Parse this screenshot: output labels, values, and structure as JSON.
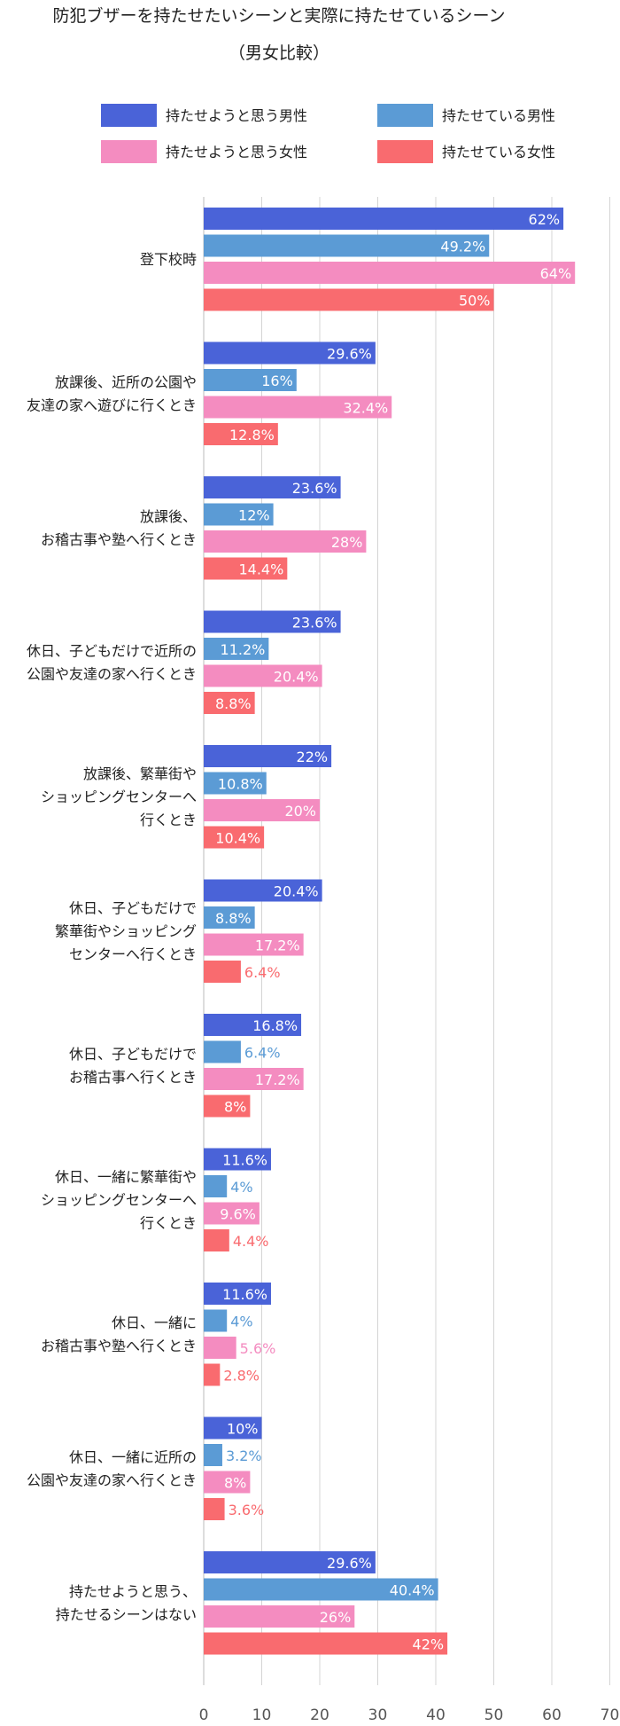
{
  "chart_data": {
    "type": "bar",
    "orientation": "horizontal",
    "title": "防犯ブザーを持たせたいシーンと実際に持たせているシーン",
    "subtitle": "（男女比較）",
    "xlim": [
      0,
      70
    ],
    "xticks": [
      0,
      10,
      20,
      30,
      40,
      50,
      60,
      70
    ],
    "grid": true,
    "legend_position": "top",
    "categories": [
      [
        "登下校時"
      ],
      [
        "放課後、近所の公園や",
        "友達の家へ遊びに行くとき"
      ],
      [
        "放課後、",
        "お稽古事や塾へ行くとき"
      ],
      [
        "休日、子どもだけで近所の",
        "公園や友達の家へ行くとき"
      ],
      [
        "放課後、繁華街や",
        "ショッピングセンターへ",
        "行くとき"
      ],
      [
        "休日、子どもだけで",
        "繁華街やショッピング",
        "センターへ行くとき"
      ],
      [
        "休日、子どもだけで",
        "お稽古事へ行くとき"
      ],
      [
        "休日、一緒に繁華街や",
        "ショッピングセンターへ",
        "行くとき"
      ],
      [
        "休日、一緒に",
        "お稽古事や塾へ行くとき"
      ],
      [
        "休日、一緒に近所の",
        "公園や友達の家へ行くとき"
      ],
      [
        "持たせようと思う、",
        "持たせるシーンはない"
      ]
    ],
    "series": [
      {
        "name": "持たせようと思う男性",
        "color": "#4a63d8",
        "values": [
          62,
          29.6,
          23.6,
          23.6,
          22,
          20.4,
          16.8,
          11.6,
          11.6,
          10,
          29.6
        ],
        "labels": [
          "62%",
          "29.6%",
          "23.6%",
          "23.6%",
          "22%",
          "20.4%",
          "16.8%",
          "11.6%",
          "11.6%",
          "10%",
          "29.6%"
        ]
      },
      {
        "name": "持たせている男性",
        "color": "#5b9bd5",
        "values": [
          49.2,
          16,
          12,
          11.2,
          10.8,
          8.8,
          6.4,
          4,
          4,
          3.2,
          40.4
        ],
        "labels": [
          "49.2%",
          "16%",
          "12%",
          "11.2%",
          "10.8%",
          "8.8%",
          "6.4%",
          "4%",
          "4%",
          "3.2%",
          "40.4%"
        ]
      },
      {
        "name": "持たせようと思う女性",
        "color": "#f48cc0",
        "values": [
          64,
          32.4,
          28,
          20.4,
          20,
          17.2,
          17.2,
          9.6,
          5.6,
          8,
          26
        ],
        "labels": [
          "64%",
          "32.4%",
          "28%",
          "20.4%",
          "20%",
          "17.2%",
          "17.2%",
          "9.6%",
          "5.6%",
          "8%",
          "26%"
        ]
      },
      {
        "name": "持たせている女性",
        "color": "#f96b6f",
        "values": [
          50,
          12.8,
          14.4,
          8.8,
          10.4,
          6.4,
          8,
          4.4,
          2.8,
          3.6,
          42
        ],
        "labels": [
          "50%",
          "12.8%",
          "14.4%",
          "8.8%",
          "10.4%",
          "6.4%",
          "8%",
          "4.4%",
          "2.8%",
          "3.6%",
          "42%"
        ]
      }
    ]
  }
}
